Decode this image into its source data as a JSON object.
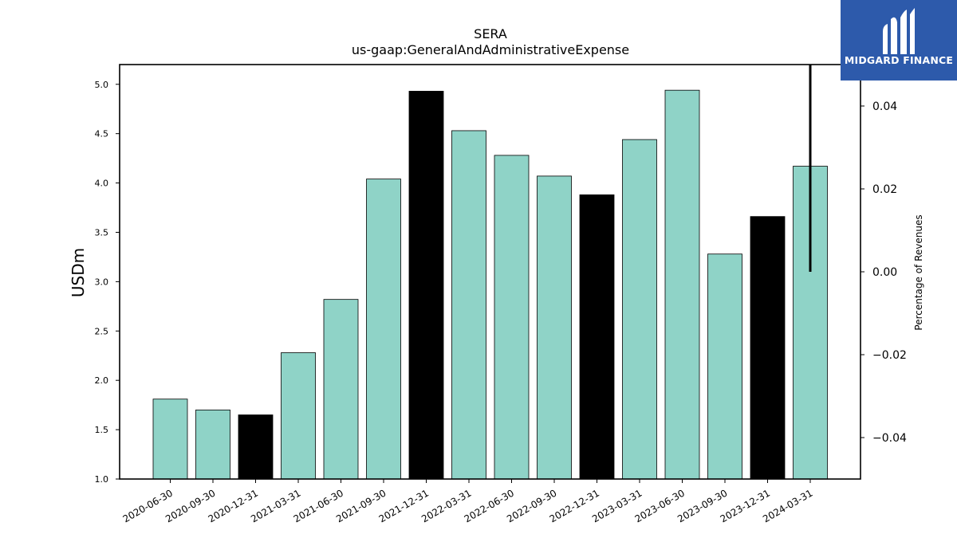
{
  "logo": {
    "text": "MIDGARD FINANCE",
    "icon": "midgard-m-icon",
    "background": "#2d5aab"
  },
  "chart_data": {
    "type": "bar",
    "title": "SERA",
    "subtitle": "us-gaap:GeneralAndAdministrativeExpense",
    "ylabel": "USDm",
    "y2label": "Percentage of Revenues",
    "ylim": [
      1.0,
      5.2
    ],
    "y2lim": [
      -0.05,
      0.05
    ],
    "yticks": [
      "1.0",
      "1.5",
      "2.0",
      "2.5",
      "3.0",
      "3.5",
      "4.0",
      "4.5",
      "5.0"
    ],
    "y2ticks": [
      "0.04",
      "0.02",
      "0.00",
      "−0.02",
      "−0.04"
    ],
    "categories": [
      "2020-06-30",
      "2020-09-30",
      "2020-12-31",
      "2021-03-31",
      "2021-06-30",
      "2021-09-30",
      "2021-12-31",
      "2022-03-31",
      "2022-06-30",
      "2022-09-30",
      "2022-12-31",
      "2023-03-31",
      "2023-06-30",
      "2023-09-30",
      "2023-12-31",
      "2024-03-31"
    ],
    "values": [
      1.81,
      1.7,
      1.65,
      2.28,
      2.82,
      4.04,
      4.93,
      4.53,
      4.28,
      4.07,
      3.88,
      4.44,
      4.94,
      3.28,
      3.66,
      4.17
    ],
    "bar_colors": [
      "#8fd3c7",
      "#8fd3c7",
      "#000000",
      "#8fd3c7",
      "#8fd3c7",
      "#8fd3c7",
      "#000000",
      "#8fd3c7",
      "#8fd3c7",
      "#8fd3c7",
      "#000000",
      "#8fd3c7",
      "#8fd3c7",
      "#8fd3c7",
      "#000000",
      "#8fd3c7"
    ],
    "secondary_line": {
      "category": "2024-03-31",
      "y_from": 0.0,
      "y_to": 0.05,
      "color": "#000000"
    },
    "grid": false,
    "legend": "none"
  }
}
